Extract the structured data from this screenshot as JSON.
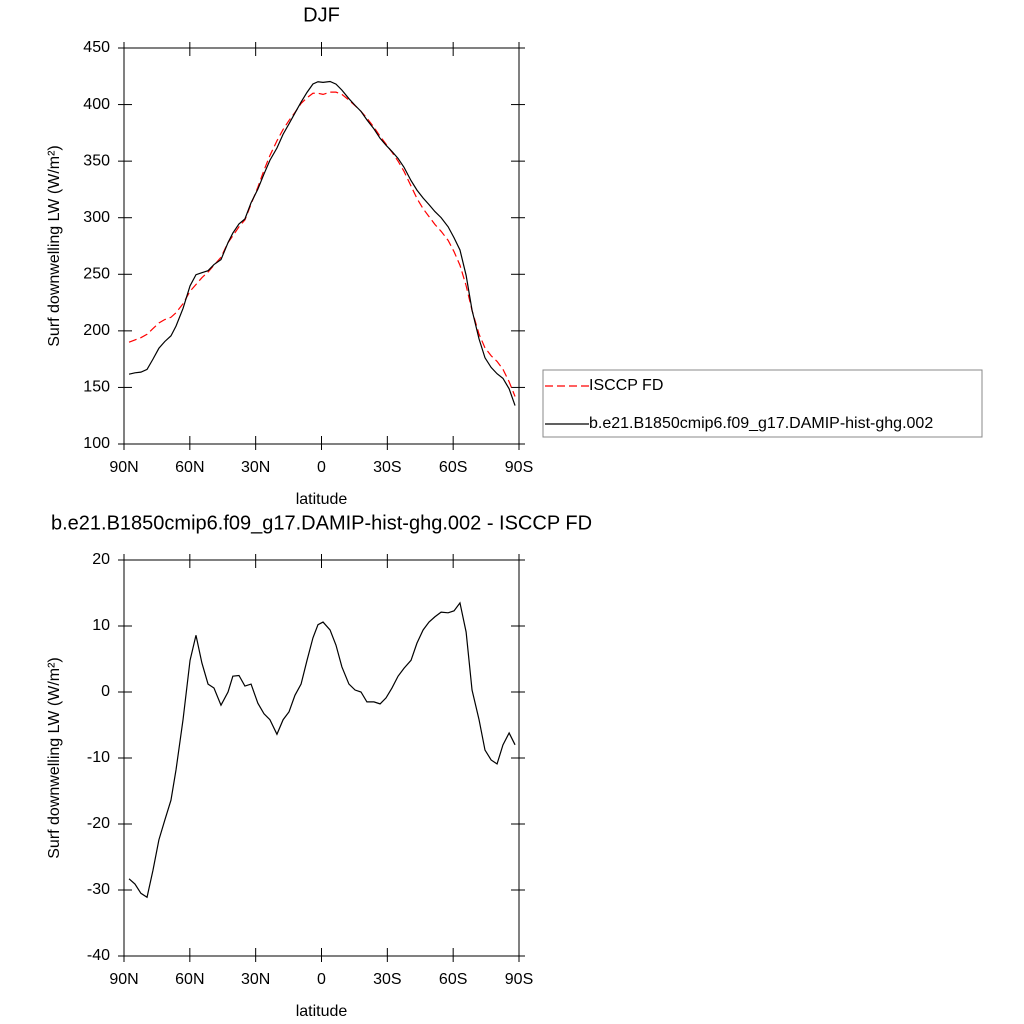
{
  "chart_data": [
    {
      "type": "line",
      "title": "DJF",
      "x_label": "latitude",
      "y_label": "Surf downwelling LW (W/m²)",
      "x": [
        87.7,
        85.0,
        82.3,
        79.5,
        76.8,
        74.1,
        71.4,
        68.6,
        66.3,
        63.1,
        59.9,
        57.2,
        54.5,
        51.7,
        49.0,
        45.8,
        42.6,
        40.4,
        37.6,
        34.9,
        32.1,
        29.0,
        26.2,
        23.5,
        20.3,
        17.5,
        14.8,
        12.1,
        9.3,
        6.6,
        3.9,
        1.6,
        -0.7,
        -3.9,
        -6.6,
        -9.3,
        -12.5,
        -15.3,
        -18.0,
        -20.7,
        -23.9,
        -26.7,
        -29.4,
        -32.1,
        -34.9,
        -37.6,
        -40.8,
        -43.5,
        -46.3,
        -49.0,
        -51.7,
        -54.5,
        -57.7,
        -60.4,
        -63.1,
        -65.9,
        -68.6,
        -71.8,
        -74.5,
        -77.3,
        -80.0,
        -82.7,
        -85.5,
        -88.2
      ],
      "series": [
        {
          "name": "ISCCP FD",
          "color": "#ff0000",
          "style": "dashed",
          "values": [
            190,
            192,
            194,
            197,
            202,
            207,
            210,
            212,
            216,
            224,
            235,
            241,
            247,
            252,
            258,
            265,
            278,
            284,
            292,
            298,
            312,
            327,
            342,
            355,
            368,
            378,
            386,
            393,
            401,
            406,
            410,
            410,
            409,
            411,
            411,
            409,
            404,
            399,
            394,
            388,
            380,
            372,
            365,
            358,
            350,
            341,
            328,
            317,
            308,
            301,
            294,
            288,
            280,
            270,
            258,
            240,
            218,
            197,
            185,
            178,
            173,
            166,
            155,
            142
          ]
        },
        {
          "name": "b.e21.B1850cmip6.f09_g17.DAMIP-hist-ghg.002",
          "color": "#000000",
          "style": "solid",
          "values": [
            161.7,
            162.9,
            163.5,
            165.9,
            175,
            184.6,
            190.6,
            195.6,
            204.2,
            219.8,
            239.8,
            249.6,
            251.4,
            253.2,
            258.6,
            263,
            278,
            286.4,
            294.5,
            298.9,
            313.2,
            325.3,
            338.7,
            350.8,
            361.6,
            373.8,
            383,
            392.5,
            402.2,
            410.8,
            418.2,
            420.2,
            419.6,
            420.4,
            418.1,
            412.8,
            405.2,
            399.3,
            394,
            386.5,
            378.5,
            370.2,
            364.1,
            358.6,
            352.4,
            344.6,
            332.8,
            324.4,
            317.4,
            311.6,
            305.4,
            300.1,
            292,
            282.3,
            271.5,
            249.1,
            218.3,
            192.8,
            176.2,
            167.7,
            162.1,
            158,
            148.8,
            134
          ]
        }
      ],
      "xlim": [
        90,
        -90
      ],
      "xticks": [
        {
          "value": 90,
          "label": "90N"
        },
        {
          "value": 60,
          "label": "60N"
        },
        {
          "value": 30,
          "label": "30N"
        },
        0,
        {
          "value": -30,
          "label": "30S"
        },
        {
          "value": -60,
          "label": "60S"
        },
        {
          "value": -90,
          "label": "90S"
        }
      ],
      "ylim": [
        100,
        450
      ],
      "yticks": [
        100,
        150,
        200,
        250,
        300,
        350,
        400,
        450
      ],
      "legend_position": "right"
    },
    {
      "type": "line",
      "title": "b.e21.B1850cmip6.f09_g17.DAMIP-hist-ghg.002 - ISCCP FD",
      "x_label": "latitude",
      "y_label": "Surf downwelling LW (W/m²)",
      "x": [
        87.7,
        85.0,
        82.3,
        79.5,
        76.8,
        74.1,
        71.4,
        68.6,
        66.3,
        63.1,
        59.9,
        57.2,
        54.5,
        51.7,
        49.0,
        45.8,
        42.6,
        40.4,
        37.6,
        34.9,
        32.1,
        29.0,
        26.2,
        23.5,
        20.3,
        17.5,
        14.8,
        12.1,
        9.3,
        6.6,
        3.9,
        1.6,
        -0.7,
        -3.9,
        -6.6,
        -9.3,
        -12.5,
        -15.3,
        -18.0,
        -20.7,
        -23.9,
        -26.7,
        -29.4,
        -32.1,
        -34.9,
        -37.6,
        -40.8,
        -43.5,
        -46.3,
        -49.0,
        -51.7,
        -54.5,
        -57.7,
        -60.4,
        -63.1,
        -65.9,
        -68.6,
        -71.8,
        -74.5,
        -77.3,
        -80.0,
        -82.7,
        -85.5,
        -88.2
      ],
      "values": [
        -28.3,
        -29.1,
        -30.5,
        -31.1,
        -27,
        -22.4,
        -19.4,
        -16.4,
        -11.8,
        -4.2,
        4.8,
        8.6,
        4.4,
        1.2,
        0.6,
        -2,
        0,
        2.4,
        2.5,
        0.9,
        1.2,
        -1.7,
        -3.3,
        -4.2,
        -6.4,
        -4.2,
        -3,
        -0.5,
        1.2,
        4.8,
        8.2,
        10.2,
        10.6,
        9.4,
        7.1,
        3.8,
        1.2,
        0.3,
        0,
        -1.5,
        -1.5,
        -1.8,
        -0.9,
        0.6,
        2.4,
        3.6,
        4.8,
        7.4,
        9.4,
        10.6,
        11.4,
        12.1,
        12,
        12.3,
        13.5,
        9.1,
        0.3,
        -4.2,
        -8.8,
        -10.3,
        -10.9,
        -8,
        -6.2,
        -8
      ],
      "color": "#000000",
      "xlim": [
        90,
        -90
      ],
      "xticks": [
        {
          "value": 90,
          "label": "90N"
        },
        {
          "value": 60,
          "label": "60N"
        },
        {
          "value": 30,
          "label": "30N"
        },
        0,
        {
          "value": -30,
          "label": "30S"
        },
        {
          "value": -60,
          "label": "60S"
        },
        {
          "value": -90,
          "label": "90S"
        }
      ],
      "ylim": [
        -40,
        20
      ],
      "yticks": [
        -40,
        -30,
        -20,
        -10,
        0,
        10,
        20
      ]
    }
  ]
}
